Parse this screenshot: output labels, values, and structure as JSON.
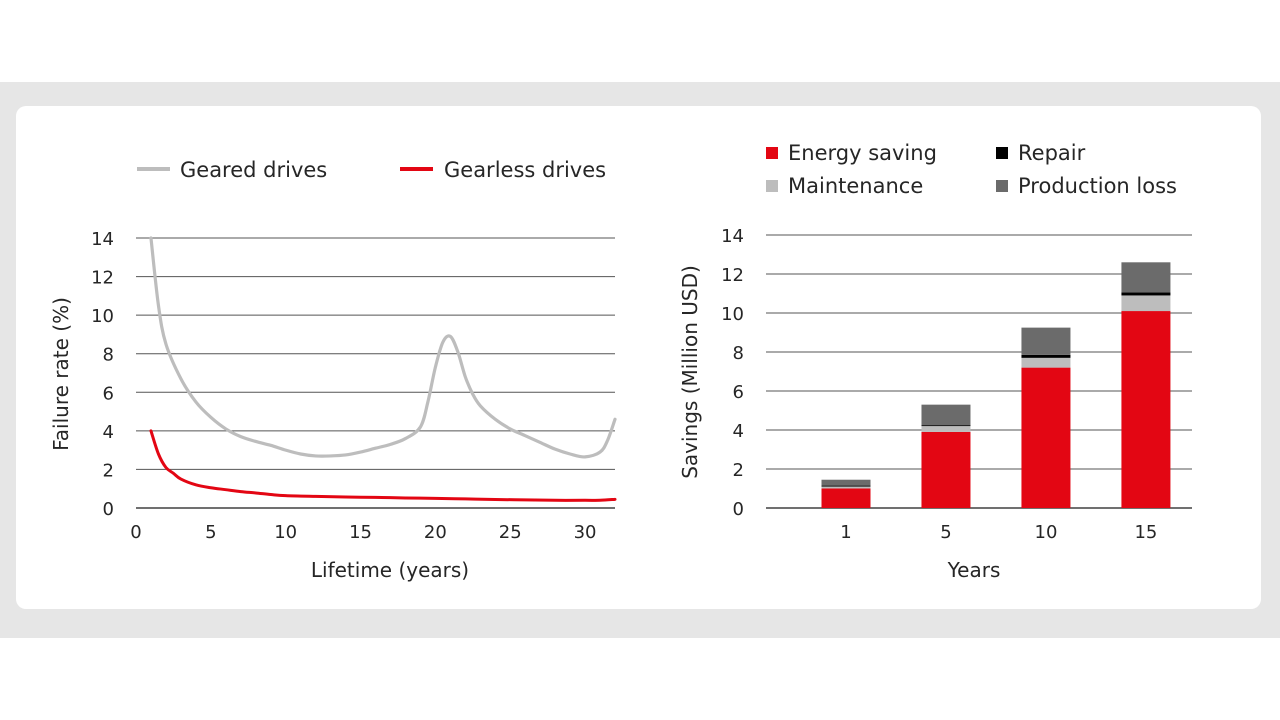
{
  "chart_data": [
    {
      "type": "line",
      "title": "",
      "xlabel": "Lifetime (years)",
      "ylabel": "Failure rate (%)",
      "xlim": [
        0,
        32
      ],
      "ylim": [
        0,
        14
      ],
      "xticks": [
        0,
        5,
        10,
        15,
        20,
        25,
        30
      ],
      "yticks": [
        0,
        2,
        4,
        6,
        8,
        10,
        12,
        14
      ],
      "grid": "horizontal",
      "legend": "top",
      "series": [
        {
          "name": "Geared drives",
          "color": "#bdbdbd",
          "x": [
            1,
            1.5,
            2,
            3,
            4,
            5,
            6,
            7,
            8,
            9,
            10,
            11,
            12,
            13,
            14,
            15,
            16,
            17,
            18,
            19,
            19.5,
            20,
            20.5,
            21,
            21.5,
            22,
            22.5,
            23,
            24,
            25,
            26,
            27,
            28,
            29,
            30,
            31,
            31.5,
            32
          ],
          "y": [
            14,
            10.5,
            8.5,
            6.7,
            5.5,
            4.7,
            4.1,
            3.7,
            3.45,
            3.25,
            3.0,
            2.8,
            2.7,
            2.7,
            2.75,
            2.9,
            3.1,
            3.3,
            3.6,
            4.2,
            5.5,
            7.3,
            8.6,
            8.9,
            8.1,
            6.8,
            5.9,
            5.3,
            4.6,
            4.1,
            3.75,
            3.4,
            3.05,
            2.8,
            2.65,
            2.9,
            3.5,
            4.6
          ]
        },
        {
          "name": "Gearless drives",
          "color": "#e30613",
          "x": [
            1,
            1.5,
            2,
            2.5,
            3,
            4,
            5,
            6,
            7,
            8,
            9,
            10,
            12,
            14,
            16,
            18,
            20,
            22,
            24,
            26,
            28,
            30,
            31,
            32
          ],
          "y": [
            4.0,
            2.8,
            2.1,
            1.8,
            1.5,
            1.2,
            1.05,
            0.95,
            0.85,
            0.78,
            0.7,
            0.64,
            0.6,
            0.57,
            0.55,
            0.52,
            0.5,
            0.47,
            0.44,
            0.42,
            0.4,
            0.4,
            0.4,
            0.45
          ]
        }
      ]
    },
    {
      "type": "bar",
      "stacked": true,
      "title": "",
      "xlabel": "Years",
      "ylabel": "Savings (Million USD)",
      "categories": [
        "1",
        "5",
        "10",
        "15"
      ],
      "ylim": [
        0,
        14
      ],
      "yticks": [
        0,
        2,
        4,
        6,
        8,
        10,
        12,
        14
      ],
      "grid": "horizontal",
      "legend": "top",
      "series": [
        {
          "name": "Energy saving",
          "color": "#e30613",
          "values": [
            1.0,
            3.9,
            7.2,
            10.1
          ]
        },
        {
          "name": "Maintenance",
          "color": "#bdbdbd",
          "values": [
            0.1,
            0.3,
            0.5,
            0.8
          ]
        },
        {
          "name": "Repair",
          "color": "#000000",
          "values": [
            0.05,
            0.05,
            0.15,
            0.15
          ]
        },
        {
          "name": "Production loss",
          "color": "#6b6b6b",
          "values": [
            0.3,
            1.05,
            1.4,
            1.55
          ]
        }
      ]
    }
  ]
}
